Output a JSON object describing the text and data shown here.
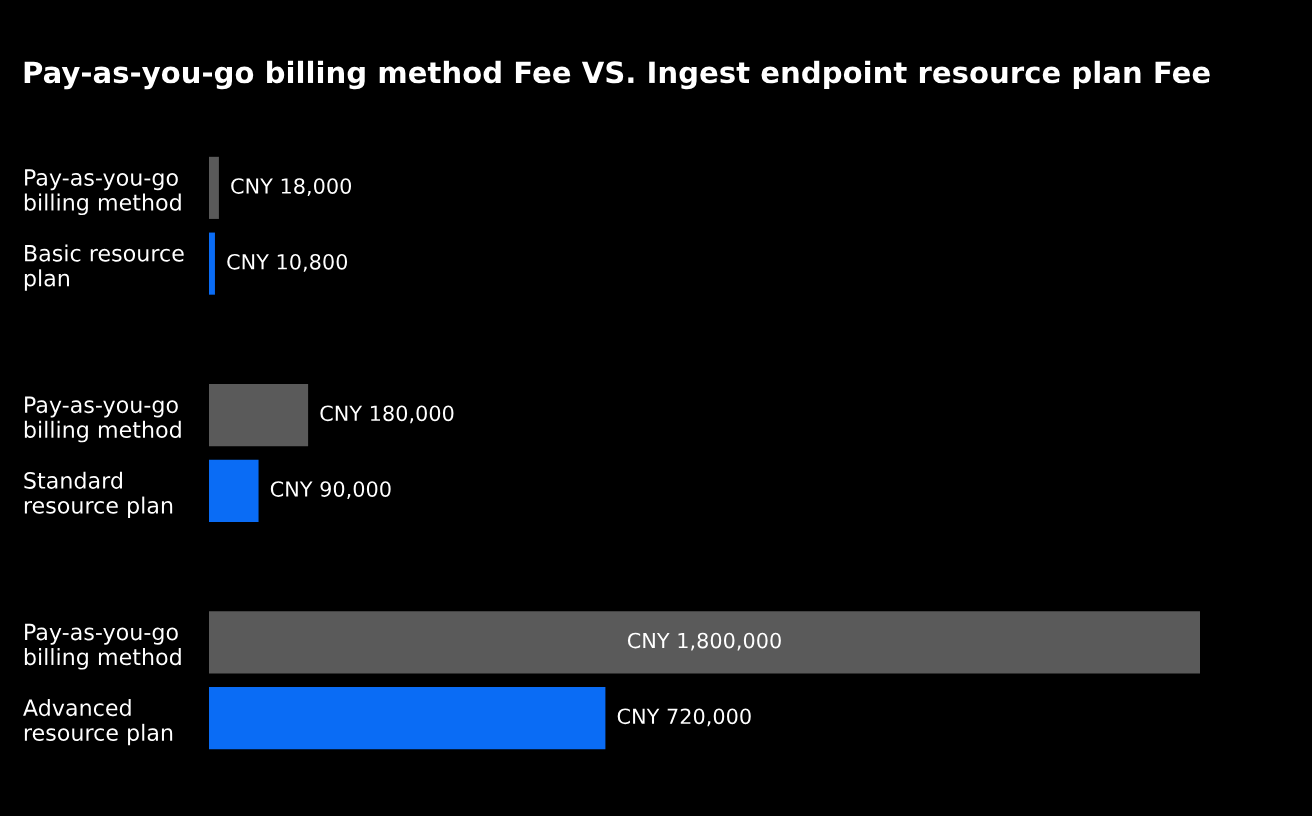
{
  "chart_data": {
    "type": "bar",
    "orientation": "horizontal",
    "title": "Pay-as-you-go billing method Fee VS. Ingest endpoint resource plan Fee",
    "categories": [
      "Pay-as-you-go\nbilling method",
      "Basic resource\nplan",
      null,
      "Pay-as-you-go\nbilling method",
      "Standard\nresource plan",
      null,
      "Pay-as-you-go\nbilling method",
      "Advanced\nresource plan"
    ],
    "values": [
      18000,
      10800,
      null,
      180000,
      90000,
      null,
      1800000,
      720000
    ],
    "colors": [
      "#5a5a5a",
      "#0a6cf5",
      null,
      "#5a5a5a",
      "#0a6cf5",
      null,
      "#5a5a5a",
      "#0a6cf5"
    ],
    "value_labels": [
      "CNY 18,000",
      "CNY 10,800",
      null,
      "CNY 180,000",
      "CNY 90,000",
      null,
      "CNY 1,800,000",
      "CNY 720,000"
    ],
    "xlim": [
      0,
      1800000
    ],
    "tick_labels": "y",
    "grid": false,
    "legend": false
  }
}
